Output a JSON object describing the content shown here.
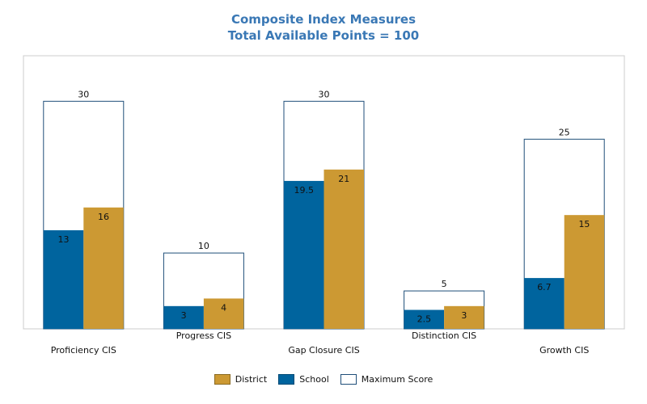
{
  "chart_data": {
    "type": "bar",
    "title": "Composite Index Measures",
    "subtitle": "Total Available Points = 100",
    "categories": [
      "Proficiency CIS",
      "Progress CIS",
      "Gap Closure CIS",
      "Distinction CIS",
      "Growth CIS"
    ],
    "series": [
      {
        "name": "School",
        "color": "#00649e",
        "values": [
          13,
          3,
          19.5,
          2.5,
          6.7
        ]
      },
      {
        "name": "District",
        "color": "#cc9933",
        "values": [
          16,
          4,
          21,
          3,
          15
        ]
      },
      {
        "name": "Maximum Score",
        "color": "#ffffff",
        "values": [
          30,
          10,
          30,
          5,
          25
        ]
      }
    ],
    "ylim": [
      0,
      36
    ],
    "grid": false,
    "legend_position": "bottom"
  },
  "legend": {
    "items": [
      {
        "label": "District",
        "color": "#cc9933"
      },
      {
        "label": "School",
        "color": "#00649e"
      },
      {
        "label": "Maximum Score",
        "color": "#ffffff"
      }
    ]
  },
  "colors": {
    "title": "#3a78b5",
    "max_border": "#1f4e79",
    "plot_border": "#cccccc"
  }
}
